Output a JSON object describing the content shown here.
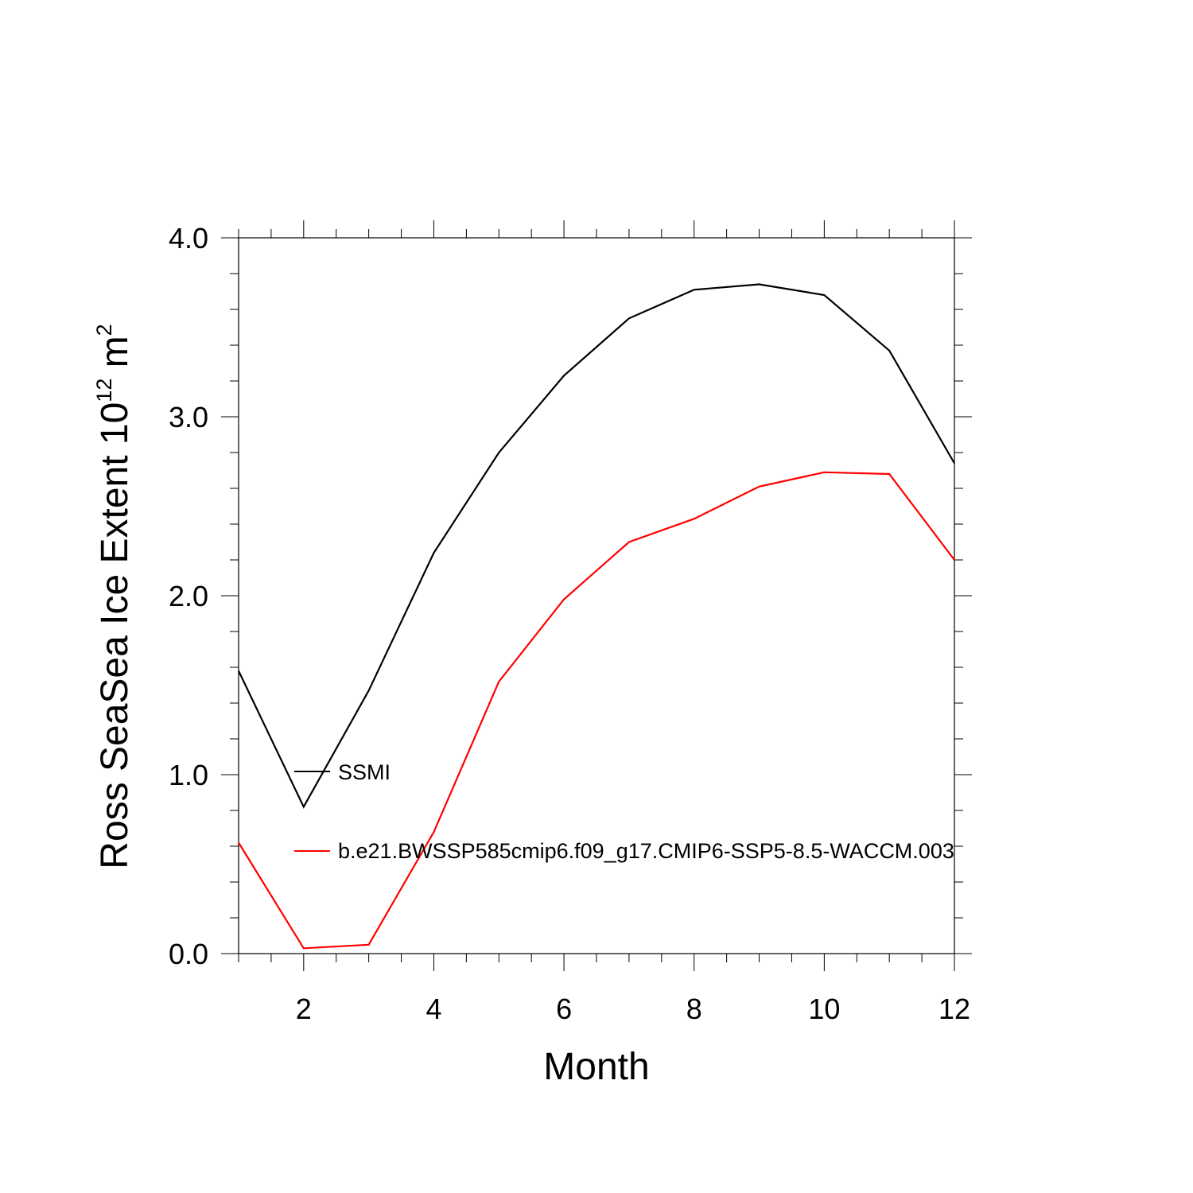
{
  "chart_data": {
    "type": "line",
    "x": [
      1,
      2,
      3,
      4,
      5,
      6,
      7,
      8,
      9,
      10,
      11,
      12
    ],
    "series": [
      {
        "name": "SSMI",
        "color": "#000000",
        "values": [
          1.58,
          0.82,
          1.47,
          2.24,
          2.8,
          3.23,
          3.55,
          3.71,
          3.74,
          3.68,
          3.37,
          2.74
        ]
      },
      {
        "name": "b.e21.BWSSP585cmip6.f09_g17.CMIP6-SSP5-8.5-WACCM.003",
        "color": "#ff0000",
        "values": [
          0.62,
          0.03,
          0.05,
          0.68,
          1.52,
          1.98,
          2.3,
          2.43,
          2.61,
          2.69,
          2.68,
          2.2
        ]
      }
    ],
    "xlabel": "Month",
    "ylabel": {
      "base": "Ross SeaSea Ice Extent 10",
      "exponent": "12",
      "unit": " m",
      "unit_exponent": "2"
    },
    "xlim": [
      1,
      12
    ],
    "ylim": [
      0,
      4
    ],
    "x_ticks": [
      2,
      4,
      6,
      8,
      10,
      12
    ],
    "x_tick_labels": [
      "2",
      "4",
      "6",
      "8",
      "10",
      "12"
    ],
    "y_ticks": [
      0,
      1,
      2,
      3,
      4
    ],
    "y_tick_labels": [
      "0.0",
      "1.0",
      "2.0",
      "3.0",
      "4.0"
    ],
    "x_minor_step": 0.5,
    "y_minor_step": 0.2,
    "grid": false,
    "legend_position": "inside-lower-left"
  }
}
